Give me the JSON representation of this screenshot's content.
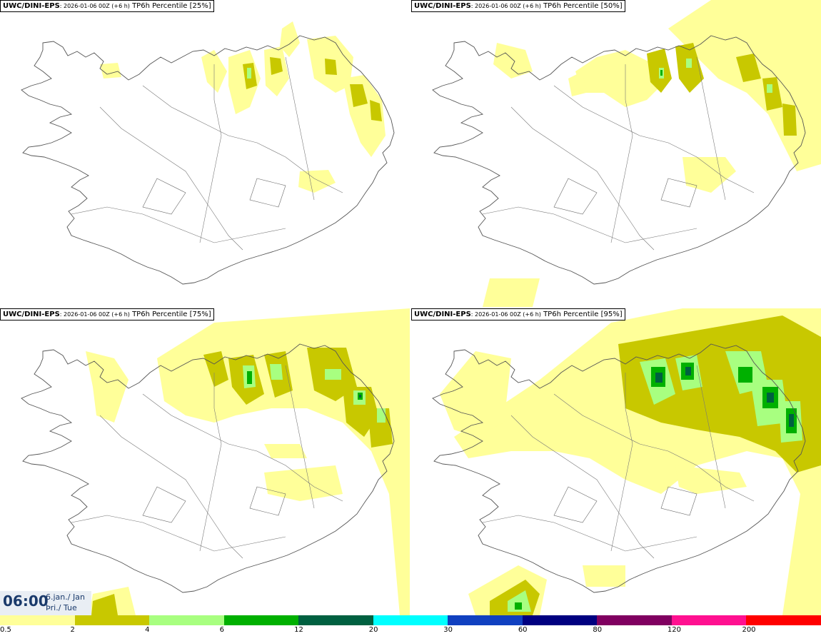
{
  "panels": [
    {
      "model": "UWC/DINI-EPS",
      "run": ": 2026-01-06 00Z (+6 h)",
      "field": " TP6h Percentile [25%]"
    },
    {
      "model": "UWC/DINI-EPS",
      "run": ": 2026-01-06 00Z (+6 h)",
      "field": " TP6h Percentile [50%]"
    },
    {
      "model": "UWC/DINI-EPS",
      "run": ": 2026-01-06 00Z (+6 h)",
      "field": " TP6h Percentile [75%]"
    },
    {
      "model": "UWC/DINI-EPS",
      "run": ": 2026-01-06 00Z (+6 h)",
      "field": " TP6h Percentile [95%]"
    }
  ],
  "valid_time": {
    "time": "06:00",
    "day_line1": "6.jan./ Jan",
    "day_line2": "Þri./ Tue"
  },
  "legend": {
    "colors": [
      "#ffff99",
      "#c8c800",
      "#a8ff80",
      "#00b000",
      "#006040",
      "#00ffff",
      "#1040c0",
      "#000080",
      "#800060",
      "#ff1090",
      "#ff0000"
    ],
    "labels": [
      "0.5",
      "2",
      "4",
      "6",
      "12",
      "20",
      "30",
      "60",
      "80",
      "120",
      "200"
    ]
  }
}
